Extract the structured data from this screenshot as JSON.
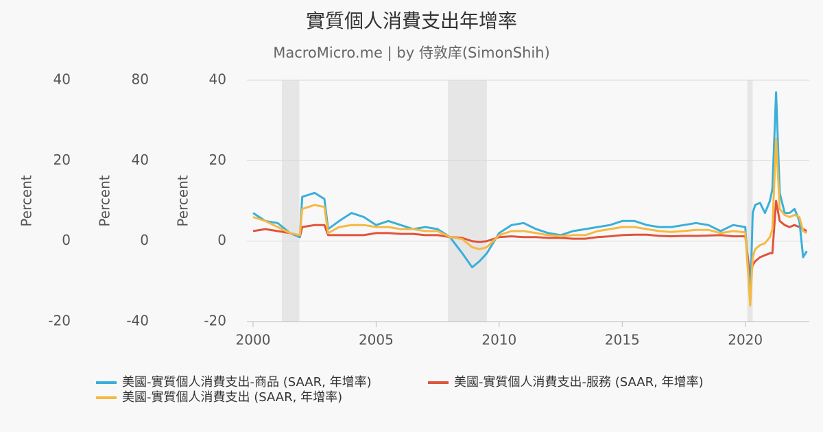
{
  "chart_data": {
    "type": "line",
    "title": "實質個人消費支出年增率",
    "subtitle": "MacroMicro.me | by 侍敦庠(SimonShih)",
    "ylabel": "Percent",
    "y2label": "Percent",
    "y3label": "Percent",
    "ylim": [
      -20,
      40
    ],
    "yticks": [
      -20,
      0,
      20,
      40
    ],
    "y2lim": [
      -40,
      80
    ],
    "y2ticks": [
      -40,
      0,
      40,
      80
    ],
    "y3lim": [
      -20,
      40
    ],
    "y3ticks": [
      -20,
      0,
      20,
      40
    ],
    "xlim": [
      1999.75,
      2022.6
    ],
    "xticks": [
      2000,
      2005,
      2010,
      2015,
      2020
    ],
    "grid": true,
    "shaded": [
      [
        2001.17,
        2001.88
      ],
      [
        2007.92,
        2009.5
      ],
      [
        2020.08,
        2020.3
      ]
    ],
    "x": [
      2000,
      2000.5,
      2001,
      2001.5,
      2001.9,
      2002.0,
      2002.5,
      2002.9,
      2003.05,
      2003.5,
      2004,
      2004.5,
      2005,
      2005.5,
      2006,
      2006.5,
      2007,
      2007.5,
      2008,
      2008.5,
      2008.9,
      2009.2,
      2009.5,
      2010,
      2010.5,
      2011,
      2011.5,
      2012,
      2012.5,
      2013,
      2013.5,
      2014,
      2014.5,
      2015,
      2015.5,
      2016,
      2016.5,
      2017,
      2017.5,
      2018,
      2018.5,
      2019,
      2019.5,
      2020,
      2020.2,
      2020.3,
      2020.4,
      2020.6,
      2020.8,
      2021,
      2021.1,
      2021.25,
      2021.4,
      2021.6,
      2021.8,
      2022,
      2022.2,
      2022.35,
      2022.5
    ],
    "series": [
      {
        "name": "美國-實質個人消費支出-商品 (SAAR, 年增率)",
        "color": "#3aafd9",
        "values": [
          7,
          5,
          4.5,
          2,
          1,
          11,
          12,
          10.5,
          3,
          5,
          7,
          6,
          4,
          5,
          4,
          3,
          3.5,
          3,
          1,
          -3,
          -6.5,
          -5,
          -3,
          2,
          4,
          4.5,
          3,
          2,
          1.5,
          2.5,
          3,
          3.5,
          4,
          5,
          5,
          4,
          3.5,
          3.5,
          4,
          4.5,
          4,
          2.5,
          4,
          3.5,
          -15,
          7,
          9,
          9.5,
          7,
          10,
          13,
          37,
          12,
          7,
          7,
          8,
          5,
          -4,
          -2.5
        ]
      },
      {
        "name": "美國-實質個人消費支出-服務 (SAAR, 年增率)",
        "color": "#e0533c",
        "values": [
          2.5,
          3,
          2.5,
          2,
          1,
          3.5,
          4,
          4,
          1.5,
          1.5,
          1.5,
          1.5,
          2,
          2,
          1.8,
          1.8,
          1.5,
          1.5,
          1,
          0.8,
          0,
          -0.2,
          0,
          1,
          1.2,
          1,
          1,
          0.8,
          0.8,
          0.6,
          0.6,
          1,
          1.2,
          1.5,
          1.6,
          1.6,
          1.3,
          1.2,
          1.3,
          1.3,
          1.4,
          1.5,
          1.2,
          1.2,
          -9,
          -6,
          -5,
          -4,
          -3.5,
          -3,
          -3,
          10,
          5,
          4,
          3.5,
          4,
          3.5,
          3,
          2.5
        ]
      },
      {
        "name": "美國-實質個人消費支出 (SAAR, 年增率)",
        "color": "#f5b942",
        "values": [
          6,
          5,
          3.5,
          2,
          1.5,
          8,
          9,
          8.5,
          2,
          3.5,
          4,
          4,
          3.5,
          3.5,
          3,
          3,
          2.5,
          2.5,
          1,
          0.5,
          -1.5,
          -2,
          -1.5,
          1.5,
          2.5,
          2.5,
          2,
          1.5,
          1.2,
          1.5,
          1.5,
          2.5,
          3,
          3.5,
          3.5,
          3,
          2.5,
          2.3,
          2.5,
          2.8,
          2.8,
          2,
          2.5,
          2.2,
          -16,
          -4,
          -2,
          -1,
          -0.5,
          1,
          3,
          25.5,
          8,
          6.5,
          6,
          6.5,
          6,
          2.5,
          2
        ]
      }
    ]
  }
}
